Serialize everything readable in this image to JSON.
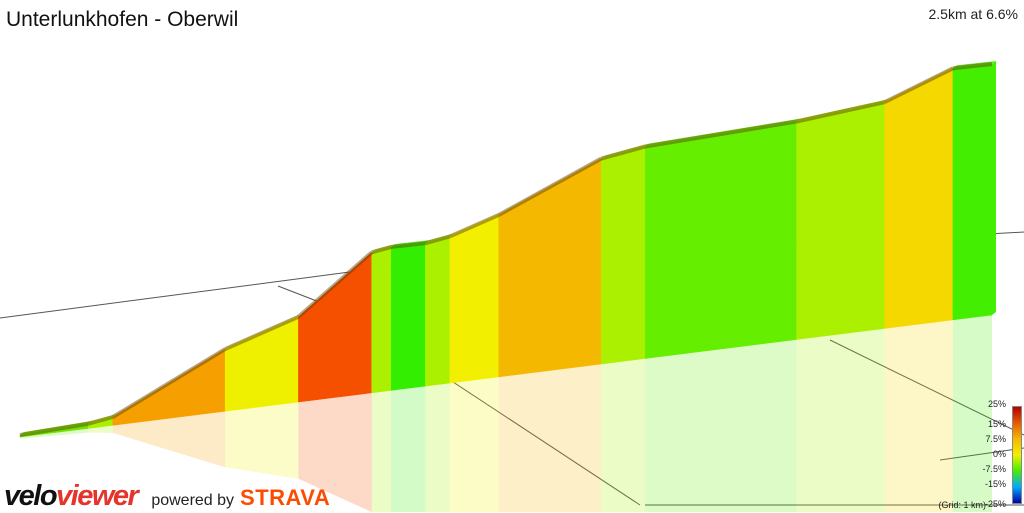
{
  "header": {
    "title": "Unterlunkhofen - Oberwil",
    "summary": "2.5km at 6.6%"
  },
  "branding": {
    "logo_velo": "velo",
    "logo_viewer": "viewer",
    "powered_by": "powered by",
    "strava": "STRAVA"
  },
  "legend": {
    "labels": [
      "25%",
      "15%",
      "7.5%",
      "0%",
      "-7.5%",
      "-15%",
      "-25%"
    ],
    "grid_note": "(Grid: 1 km)",
    "gradient_colors": [
      "#b30000",
      "#e85a00",
      "#f5b800",
      "#f2f000",
      "#44ee00",
      "#00aaff",
      "#0000aa"
    ]
  },
  "chart_data": {
    "type": "area",
    "title": "Unterlunkhofen - Oberwil",
    "distance_km": 2.5,
    "average_grade_percent": 6.6,
    "segments": [
      {
        "grade_percent": 3,
        "color": "#6ee600"
      },
      {
        "grade_percent": 5,
        "color": "#aaf000"
      },
      {
        "grade_percent": 11,
        "color": "#f5a000"
      },
      {
        "grade_percent": 8,
        "color": "#eef000"
      },
      {
        "grade_percent": 16,
        "color": "#f55000"
      },
      {
        "grade_percent": 5,
        "color": "#aaf000"
      },
      {
        "grade_percent": 2,
        "color": "#33ee00"
      },
      {
        "grade_percent": 5,
        "color": "#aaf000"
      },
      {
        "grade_percent": 8,
        "color": "#f2f000"
      },
      {
        "grade_percent": 10,
        "color": "#f5b800"
      },
      {
        "grade_percent": 5,
        "color": "#aaf000"
      },
      {
        "grade_percent": 3,
        "color": "#66ee00"
      },
      {
        "grade_percent": 4,
        "color": "#aaf000"
      },
      {
        "grade_percent": 9,
        "color": "#f5d800"
      },
      {
        "grade_percent": 2,
        "color": "#44ee00"
      }
    ]
  }
}
